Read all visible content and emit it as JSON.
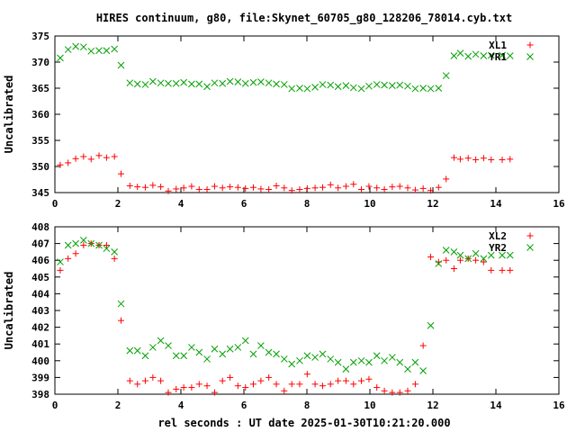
{
  "chart_data": [
    {
      "type": "scatter",
      "title": "HIRES continuum, g80, file:Skynet_60705_g80_128206_78014.cyb.txt",
      "xlabel": "",
      "ylabel": "Uncalibrated",
      "xlim": [
        0,
        16
      ],
      "ylim": [
        345,
        375
      ],
      "xticks": [
        0,
        2,
        4,
        6,
        8,
        10,
        12,
        14,
        16
      ],
      "yticks": [
        345,
        350,
        355,
        360,
        365,
        370,
        375
      ],
      "grid": false,
      "legend_position": "top-right",
      "series": [
        {
          "name": "XL1",
          "marker": "plus",
          "color": "#ff0000",
          "x": [
            0.17,
            0.42,
            0.66,
            0.91,
            1.15,
            1.4,
            1.64,
            1.89,
            2.1,
            2.38,
            2.62,
            2.87,
            3.11,
            3.36,
            3.6,
            3.85,
            4.09,
            4.34,
            4.58,
            4.83,
            5.07,
            5.32,
            5.56,
            5.81,
            6.05,
            6.3,
            6.54,
            6.79,
            7.03,
            7.28,
            7.52,
            7.77,
            8.01,
            8.26,
            8.5,
            8.75,
            8.99,
            9.24,
            9.48,
            9.73,
            9.97,
            10.22,
            10.46,
            10.71,
            10.95,
            11.2,
            11.44,
            11.69,
            11.93,
            12.18,
            12.42,
            12.67,
            12.87,
            13.12,
            13.36,
            13.61,
            13.85,
            14.2,
            14.45
          ],
          "y": [
            350.3,
            350.7,
            351.5,
            351.9,
            351.4,
            352.1,
            351.7,
            351.9,
            348.6,
            346.3,
            346.1,
            346.0,
            346.4,
            346.1,
            345.3,
            345.7,
            345.9,
            346.2,
            345.6,
            345.6,
            346.2,
            345.9,
            346.1,
            346.0,
            345.8,
            346.0,
            345.7,
            345.6,
            346.3,
            345.9,
            345.4,
            345.6,
            345.8,
            345.9,
            346.0,
            346.5,
            345.9,
            346.2,
            346.6,
            345.6,
            346.2,
            345.9,
            345.6,
            346.1,
            346.2,
            345.9,
            345.5,
            345.8,
            345.4,
            346.0,
            347.6,
            351.7,
            351.4,
            351.6,
            351.3,
            351.6,
            351.3,
            351.3,
            351.4
          ]
        },
        {
          "name": "YR1",
          "marker": "cross",
          "color": "#00a000",
          "x": [
            0.17,
            0.42,
            0.66,
            0.91,
            1.15,
            1.4,
            1.64,
            1.89,
            2.1,
            2.38,
            2.62,
            2.87,
            3.11,
            3.36,
            3.6,
            3.85,
            4.09,
            4.34,
            4.58,
            4.83,
            5.07,
            5.32,
            5.56,
            5.81,
            6.05,
            6.3,
            6.54,
            6.79,
            7.03,
            7.28,
            7.52,
            7.77,
            8.01,
            8.26,
            8.5,
            8.75,
            8.99,
            9.24,
            9.48,
            9.73,
            9.97,
            10.22,
            10.46,
            10.71,
            10.95,
            11.2,
            11.44,
            11.69,
            11.93,
            12.18,
            12.42,
            12.67,
            12.87,
            13.12,
            13.36,
            13.61,
            13.85,
            14.2,
            14.45
          ],
          "y": [
            370.8,
            372.4,
            373.0,
            372.9,
            372.1,
            372.2,
            372.2,
            372.5,
            369.4,
            366.0,
            365.8,
            365.7,
            366.3,
            366.0,
            365.9,
            365.9,
            366.1,
            365.8,
            365.8,
            365.3,
            366.0,
            365.9,
            366.3,
            366.2,
            365.9,
            366.1,
            366.2,
            366.0,
            365.8,
            365.7,
            364.9,
            365.0,
            364.9,
            365.2,
            365.7,
            365.6,
            365.3,
            365.5,
            365.1,
            364.9,
            365.4,
            365.7,
            365.6,
            365.5,
            365.6,
            365.4,
            364.9,
            365.0,
            364.9,
            365.0,
            367.4,
            371.2,
            371.7,
            371.1,
            371.5,
            371.2,
            371.3,
            371.3,
            371.2
          ]
        }
      ]
    },
    {
      "type": "scatter",
      "title": "",
      "xlabel": "rel seconds : UT date 2025-01-30T10:21:20.000",
      "ylabel": "Uncalibrated",
      "xlim": [
        0,
        16
      ],
      "ylim": [
        398,
        408
      ],
      "xticks": [
        0,
        2,
        4,
        6,
        8,
        10,
        12,
        14,
        16
      ],
      "yticks": [
        398,
        399,
        400,
        401,
        402,
        403,
        404,
        405,
        406,
        407,
        408
      ],
      "grid": false,
      "legend_position": "top-right",
      "series": [
        {
          "name": "XL2",
          "marker": "plus",
          "color": "#ff0000",
          "x": [
            0.17,
            0.42,
            0.66,
            0.91,
            1.15,
            1.4,
            1.64,
            1.89,
            2.1,
            2.38,
            2.62,
            2.87,
            3.11,
            3.36,
            3.6,
            3.85,
            4.09,
            4.34,
            4.58,
            4.83,
            5.07,
            5.32,
            5.56,
            5.81,
            6.05,
            6.3,
            6.54,
            6.79,
            7.03,
            7.28,
            7.52,
            7.77,
            8.01,
            8.26,
            8.5,
            8.75,
            8.99,
            9.24,
            9.48,
            9.73,
            9.97,
            10.22,
            10.46,
            10.71,
            10.95,
            11.2,
            11.44,
            11.69,
            11.93,
            12.18,
            12.42,
            12.67,
            12.87,
            13.12,
            13.36,
            13.61,
            13.85,
            14.2,
            14.45
          ],
          "y": [
            405.4,
            406.1,
            406.4,
            406.9,
            407.0,
            406.9,
            406.9,
            406.1,
            402.4,
            398.8,
            398.6,
            398.8,
            399.0,
            398.8,
            398.1,
            398.3,
            398.4,
            398.4,
            398.6,
            398.5,
            398.1,
            398.8,
            399.0,
            398.5,
            398.4,
            398.6,
            398.8,
            399.0,
            398.6,
            398.2,
            398.6,
            398.6,
            399.2,
            398.6,
            398.5,
            398.6,
            398.8,
            398.8,
            398.6,
            398.8,
            398.9,
            398.4,
            398.2,
            398.1,
            398.1,
            398.2,
            398.6,
            400.9,
            406.2,
            405.9,
            406.0,
            405.5,
            406.0,
            406.1,
            406.0,
            405.9,
            405.4,
            405.4,
            405.4
          ]
        },
        {
          "name": "YR2",
          "marker": "cross",
          "color": "#00a000",
          "x": [
            0.17,
            0.42,
            0.66,
            0.91,
            1.15,
            1.4,
            1.64,
            1.89,
            2.1,
            2.38,
            2.62,
            2.87,
            3.11,
            3.36,
            3.6,
            3.85,
            4.09,
            4.34,
            4.58,
            4.83,
            5.07,
            5.32,
            5.56,
            5.81,
            6.05,
            6.3,
            6.54,
            6.79,
            7.03,
            7.28,
            7.52,
            7.77,
            8.01,
            8.26,
            8.5,
            8.75,
            8.99,
            9.24,
            9.48,
            9.73,
            9.97,
            10.22,
            10.46,
            10.71,
            10.95,
            11.2,
            11.44,
            11.69,
            11.93,
            12.18,
            12.42,
            12.67,
            12.87,
            13.12,
            13.36,
            13.61,
            13.85,
            14.2,
            14.45
          ],
          "y": [
            405.9,
            406.9,
            407.0,
            407.2,
            407.0,
            406.9,
            406.7,
            406.5,
            403.4,
            400.6,
            400.6,
            400.3,
            400.8,
            401.2,
            400.9,
            400.3,
            400.3,
            400.8,
            400.5,
            400.1,
            400.7,
            400.4,
            400.7,
            400.8,
            401.2,
            400.4,
            400.9,
            400.5,
            400.4,
            400.1,
            399.8,
            400.0,
            400.3,
            400.2,
            400.4,
            400.1,
            399.9,
            399.5,
            399.9,
            400.0,
            399.9,
            400.3,
            400.0,
            400.2,
            399.9,
            399.5,
            399.9,
            399.4,
            402.1,
            405.8,
            406.6,
            406.5,
            406.3,
            406.1,
            406.4,
            406.1,
            406.3,
            406.3,
            406.3
          ]
        }
      ]
    }
  ]
}
